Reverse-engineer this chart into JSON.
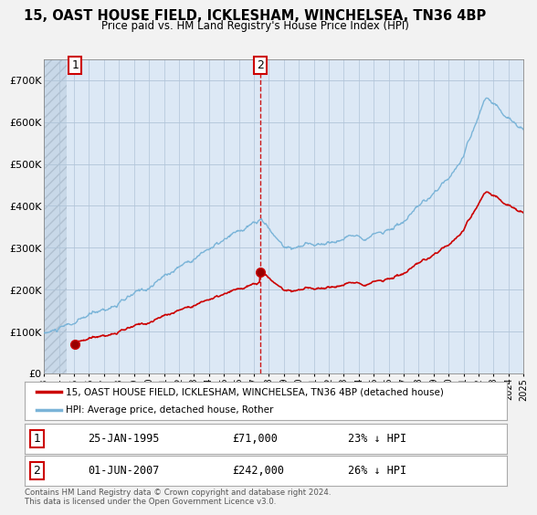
{
  "title": "15, OAST HOUSE FIELD, ICKLESHAM, WINCHELSEA, TN36 4BP",
  "subtitle": "Price paid vs. HM Land Registry's House Price Index (HPI)",
  "sale1_date": "25-JAN-1995",
  "sale1_price": 71000,
  "sale1_label": "23% ↓ HPI",
  "sale2_date": "01-JUN-2007",
  "sale2_price": 242000,
  "sale2_label": "26% ↓ HPI",
  "hpi_color": "#7ab4d8",
  "price_color": "#cc0000",
  "annotation_color": "#cc0000",
  "background_color": "#f2f2f2",
  "plot_bg_color": "#dce8f5",
  "ylim": [
    0,
    750000
  ],
  "yticks": [
    0,
    100000,
    200000,
    300000,
    400000,
    500000,
    600000,
    700000
  ],
  "ytick_labels": [
    "£0",
    "£100K",
    "£200K",
    "£300K",
    "£400K",
    "£500K",
    "£600K",
    "£700K"
  ],
  "footer": "Contains HM Land Registry data © Crown copyright and database right 2024.\nThis data is licensed under the Open Government Licence v3.0.",
  "legend_line1": "15, OAST HOUSE FIELD, ICKLESHAM, WINCHELSEA, TN36 4BP (detached house)",
  "legend_line2": "HPI: Average price, detached house, Rother"
}
